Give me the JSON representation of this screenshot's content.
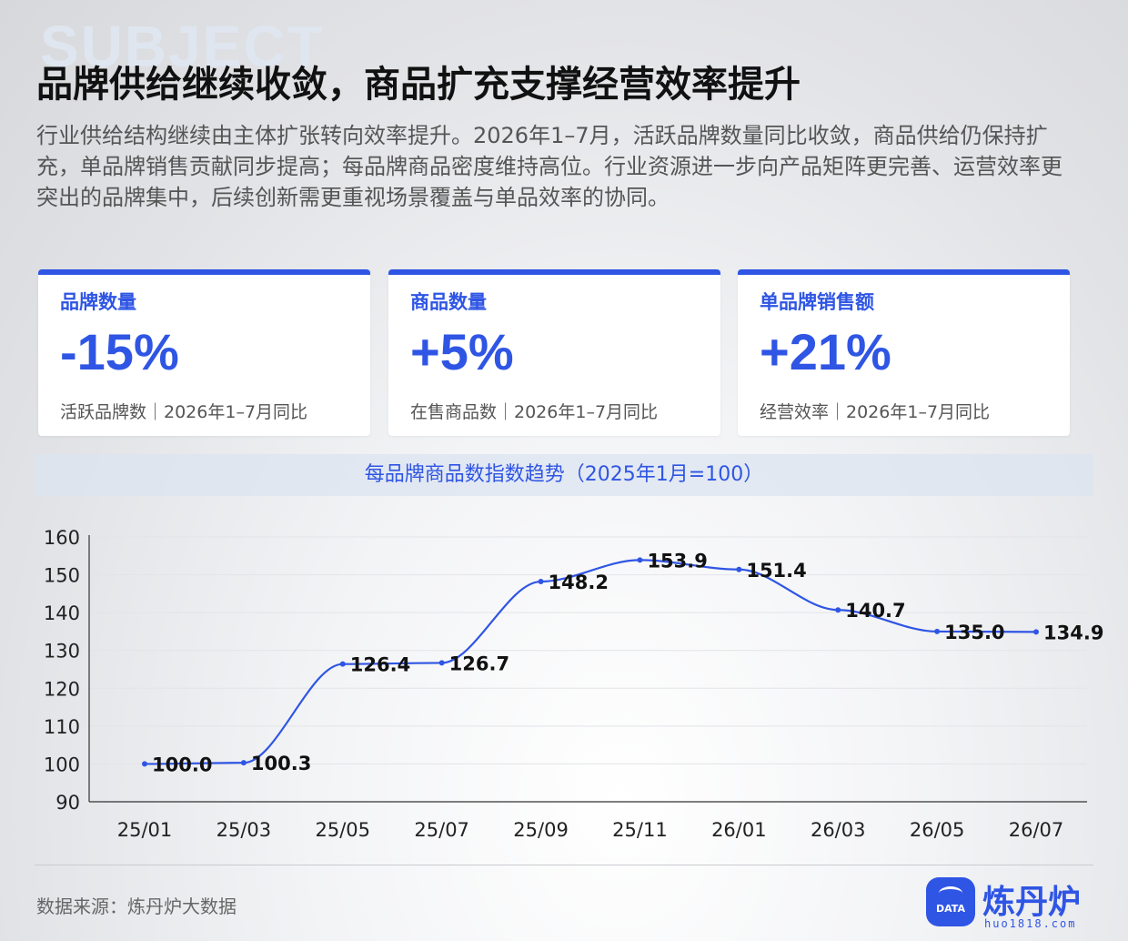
{
  "header": {
    "background_word": "SUBJECT",
    "title": "品牌供给继续收敛，商品扩充支撑经营效率提升",
    "subtitle": "行业供给结构继续由主体扩张转向效率提升。2026年1–7月，活跃品牌数量同比收敛，商品供给仍保持扩充，单品牌销售贡献同步提高；每品牌商品密度维持高位。行业资源进一步向产品矩阵更完善、运营效率更突出的品牌集中，后续创新需更重视场景覆盖与单品效率的协同。"
  },
  "cards": [
    {
      "label": "品牌数量",
      "value": "-15%",
      "note": "活跃品牌数｜2026年1–7月同比"
    },
    {
      "label": "商品数量",
      "value": "+5%",
      "note": "在售商品数｜2026年1–7月同比"
    },
    {
      "label": "单品牌销售额",
      "value": "+21%",
      "note": "经营效率｜2026年1–7月同比"
    }
  ],
  "colors": {
    "accent": "#2f55e4"
  },
  "chart_data": {
    "type": "line",
    "title": "每品牌商品数指数趋势（2025年1月=100）",
    "x": [
      "25/01",
      "25/03",
      "25/05",
      "25/07",
      "25/09",
      "25/11",
      "26/01",
      "26/03",
      "26/05",
      "26/07"
    ],
    "series": [
      {
        "values": [
          100.0,
          100.3,
          126.4,
          126.7,
          148.2,
          153.9,
          151.4,
          140.7,
          135.0,
          134.9
        ]
      }
    ],
    "ylim": [
      90,
      160
    ],
    "yticks": [
      90,
      100,
      110,
      120,
      130,
      140,
      150,
      160
    ],
    "grid": "horizontal",
    "smooth": true,
    "data_labels": true
  },
  "footer": {
    "source": "数据来源：炼丹炉大数据",
    "logo_badge": "DATA",
    "logo_name": "炼丹炉",
    "logo_url": "huo1818.com"
  }
}
